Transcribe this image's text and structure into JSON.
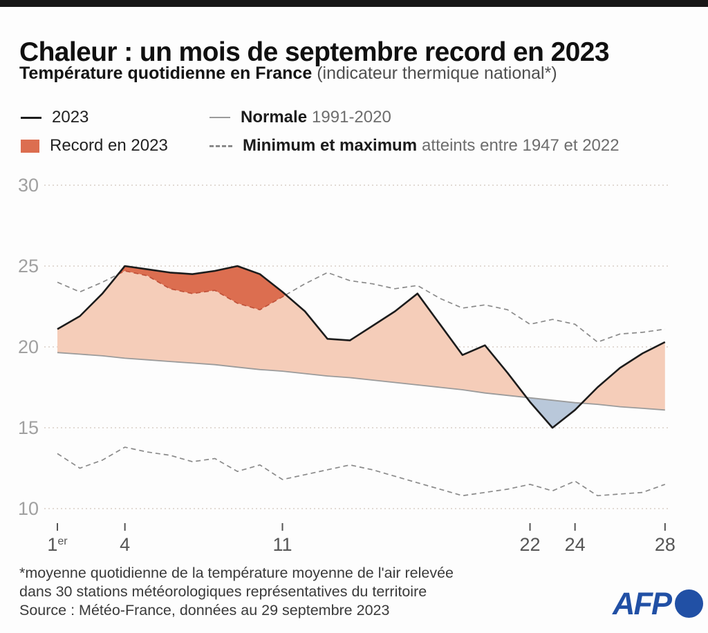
{
  "header": {
    "title": "Chaleur : un mois de septembre record en 2023",
    "subtitle_bold": "Température quotidienne en France",
    "subtitle_rest": "(indicateur thermique national*)"
  },
  "legend": {
    "item_2023": "2023",
    "normale_bold": "Normale",
    "normale_rest": "1991-2020",
    "record": "Record en 2023",
    "minmax_bold": "Minimum et maximum",
    "minmax_rest": "atteints entre 1947 et 2022"
  },
  "footer": {
    "note_line1": "*moyenne quotidienne de la température moyenne de l'air relevée",
    "note_line2": "dans 30 stations météorologiques représentatives du territoire",
    "source": "Source : Météo-France, données au 29 septembre 2023",
    "logo_text": "AFP"
  },
  "colors": {
    "line2023": "#1c1c1c",
    "normale": "#9b9b9b",
    "dashed": "#8a8a8a",
    "record_dash": "#c0523a",
    "band": "#f5cdb9",
    "record": "#dc6e50",
    "below": "#b9c8da",
    "grid": "#d8cec7",
    "axis": "#a0a0a0",
    "xlabel": "#555555",
    "afp": "#2150a5"
  },
  "chart_data": {
    "type": "area",
    "x_unit": "jour de septembre",
    "y_unit": "°C",
    "ylim": [
      10,
      30
    ],
    "yticks": [
      10,
      15,
      20,
      25,
      30
    ],
    "grid": true,
    "legend_position": "top",
    "x": [
      1,
      2,
      3,
      4,
      5,
      6,
      7,
      8,
      9,
      10,
      11,
      12,
      13,
      14,
      15,
      16,
      17,
      18,
      19,
      20,
      21,
      22,
      23,
      24,
      25,
      26,
      27,
      28
    ],
    "x_ticks": [
      {
        "day": 1,
        "label": "1",
        "sup": "er"
      },
      {
        "day": 4,
        "label": "4"
      },
      {
        "day": 11,
        "label": "11"
      },
      {
        "day": 22,
        "label": "22"
      },
      {
        "day": 24,
        "label": "24"
      },
      {
        "day": 28,
        "label": "28"
      }
    ],
    "series": [
      {
        "name": "2023",
        "values": [
          21.1,
          21.9,
          23.3,
          25.0,
          24.8,
          24.6,
          24.5,
          24.7,
          25.0,
          24.5,
          23.4,
          22.2,
          20.5,
          20.4,
          21.3,
          22.2,
          23.3,
          21.4,
          19.5,
          20.1,
          18.4,
          16.6,
          15.0,
          16.1,
          17.5,
          18.7,
          19.6,
          20.3
        ]
      },
      {
        "name": "normale",
        "values": [
          19.65,
          19.55,
          19.45,
          19.3,
          19.2,
          19.1,
          19.0,
          18.9,
          18.75,
          18.6,
          18.5,
          18.35,
          18.2,
          18.1,
          17.95,
          17.8,
          17.65,
          17.5,
          17.35,
          17.15,
          17.0,
          16.85,
          16.7,
          16.55,
          16.45,
          16.3,
          16.2,
          16.1
        ]
      },
      {
        "name": "max",
        "values": [
          24.0,
          23.4,
          24.0,
          24.7,
          24.4,
          23.6,
          23.3,
          23.5,
          22.7,
          22.3,
          23.1,
          23.9,
          24.6,
          24.1,
          23.9,
          23.6,
          23.8,
          23.0,
          22.4,
          22.6,
          22.3,
          21.4,
          21.7,
          21.4,
          20.3,
          20.8,
          20.9,
          21.1
        ]
      },
      {
        "name": "min",
        "values": [
          13.4,
          12.5,
          13.0,
          13.8,
          13.5,
          13.3,
          12.9,
          13.1,
          12.3,
          12.7,
          11.8,
          12.1,
          12.4,
          12.7,
          12.4,
          12.0,
          11.6,
          11.2,
          10.8,
          11.0,
          11.2,
          11.5,
          11.1,
          11.7,
          10.8,
          10.9,
          11.0,
          11.5
        ]
      }
    ],
    "fills": [
      {
        "name": "au-dessus-normale",
        "top": "2023",
        "bottom": "normale",
        "color_key": "band"
      },
      {
        "name": "record-en-2023",
        "top": "2023",
        "bottom": "max",
        "color_key": "record"
      },
      {
        "name": "sous-normale",
        "top": "normale",
        "bottom": "2023",
        "color_key": "below"
      }
    ]
  }
}
